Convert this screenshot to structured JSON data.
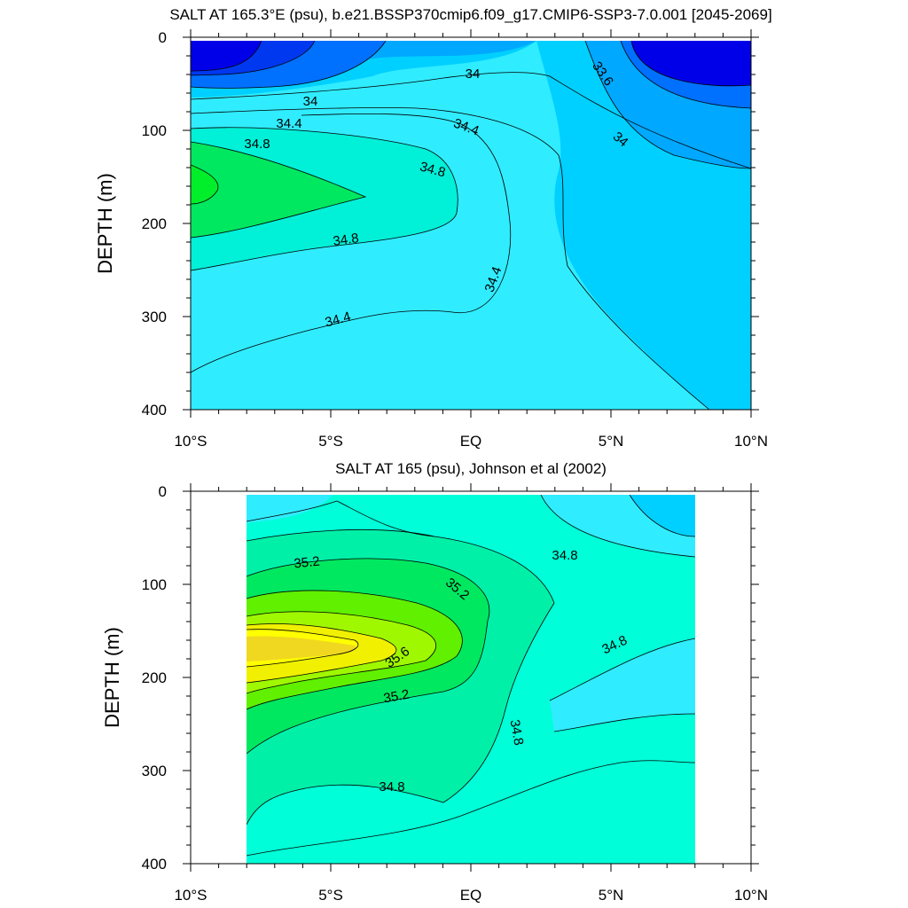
{
  "chart_data": [
    {
      "type": "contour",
      "title": "SALT AT 165.3°E (psu), b.e21.BSSP370cmip6.f09_g17.CMIP6-SSP3-7.0.001 [2045-2069]",
      "ylabel": "DEPTH (m)",
      "xlabel": "",
      "xlim": [
        -10,
        10
      ],
      "ylim": [
        0,
        400
      ],
      "x_ticks": [
        -10,
        -5,
        0,
        5,
        10
      ],
      "x_tick_labels": [
        "10°S",
        "5°S",
        "EQ",
        "5°N",
        "10°N"
      ],
      "y_ticks": [
        0,
        100,
        200,
        300,
        400
      ],
      "y_tick_labels": [
        "0",
        "100",
        "200",
        "300",
        "400"
      ],
      "contour_labels": [
        "34",
        "33.6",
        "34",
        "34.4",
        "34.4",
        "34.8",
        "34",
        "34.8",
        "34.8",
        "34.4",
        "34.4"
      ],
      "fill_colors": [
        "#0000e8",
        "#0038f0",
        "#0070ff",
        "#00a8ff",
        "#00d0ff",
        "#30ecff",
        "#00f0d8",
        "#00e860",
        "#00ef2a"
      ]
    },
    {
      "type": "contour",
      "title": "SALT AT 165 (psu), Johnson et al (2002)",
      "ylabel": "DEPTH (m)",
      "xlabel": "",
      "xlim": [
        -10,
        10
      ],
      "ylim": [
        0,
        400
      ],
      "data_xlim": [
        -8,
        8
      ],
      "x_ticks": [
        -10,
        -5,
        0,
        5,
        10
      ],
      "x_tick_labels": [
        "10°S",
        "5°S",
        "EQ",
        "5°N",
        "10°N"
      ],
      "y_ticks": [
        0,
        100,
        200,
        300,
        400
      ],
      "y_tick_labels": [
        "0",
        "100",
        "200",
        "300",
        "400"
      ],
      "contour_labels": [
        "35.2",
        "35.2",
        "34.8",
        "35.6",
        "35.2",
        "34.8",
        "34.8",
        "34.8"
      ],
      "fill_colors": [
        "#00d0ff",
        "#30ecff",
        "#00ffd8",
        "#00f0a8",
        "#00e860",
        "#00d830",
        "#60f000",
        "#a0f800",
        "#f0f000",
        "#ffff00",
        "#f0d820"
      ]
    }
  ]
}
